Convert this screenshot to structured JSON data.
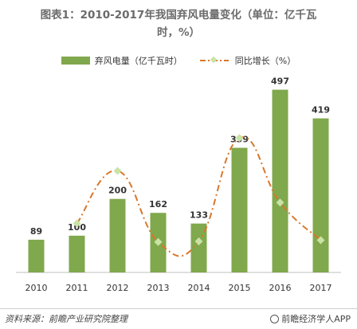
{
  "title_lines": [
    "图表1：2010-2017年我国弃风电量变化（单位：亿千瓦",
    "时，%）"
  ],
  "legend": {
    "bar_label": "弃风电量（亿千瓦时）",
    "line_label": "同比增长（%）"
  },
  "footer": {
    "source": "资料来源：前瞻产业研究院整理",
    "brand": "前瞻经济学人APP"
  },
  "colors": {
    "bar": "#80a84c",
    "line": "#d9772b",
    "marker": "#c9e3a6"
  },
  "chart_data": {
    "type": "bar",
    "categories": [
      "2010",
      "2011",
      "2012",
      "2013",
      "2014",
      "2015",
      "2016",
      "2017"
    ],
    "series": [
      {
        "name": "弃风电量（亿千瓦时）",
        "type": "bar",
        "values": [
          89,
          100,
          200,
          162,
          133,
          339,
          497,
          419
        ],
        "labels": [
          "89",
          "100",
          "200",
          "162",
          "133",
          "339",
          "497",
          "419"
        ]
      },
      {
        "name": "同比增长（%）",
        "type": "line",
        "values": [
          null,
          12,
          100,
          -19,
          -18,
          155,
          47,
          -16
        ]
      }
    ],
    "ylim": [
      0,
      520
    ],
    "line_ylim": [
      -70,
      250
    ],
    "grid": false,
    "legend_position": "top"
  }
}
